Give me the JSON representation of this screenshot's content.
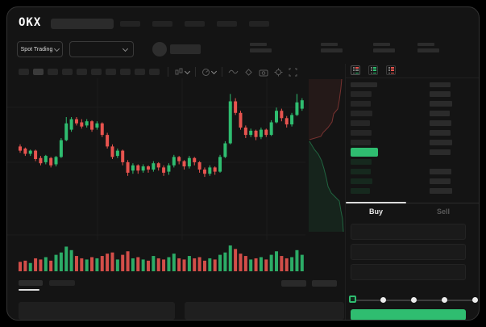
{
  "app": {
    "logo_text": "OKX"
  },
  "colors": {
    "background": "#000000",
    "window_bg": "#141414",
    "green": "#2fbd70",
    "red": "#e8544f",
    "text_primary": "#e8e8e8",
    "text_muted": "#595959"
  },
  "header": {
    "logo_text": "OKX",
    "search_placeholder": "",
    "nav_item_count": 5
  },
  "market_bar": {
    "market_selector_label": "Spot Trading",
    "stat_count": 4
  },
  "chart_toolbar": {
    "timeframe_slot_count": 10,
    "active_slot_index": 1,
    "icons": [
      "chart-type-icon",
      "chevron-down-icon",
      "indicators-icon",
      "chevron-down-icon",
      "line-tool-icon",
      "draw-tool-icon",
      "camera-icon",
      "settings-icon",
      "fullscreen-icon"
    ]
  },
  "chart_data": [
    {
      "type": "candlestick",
      "title": "",
      "xlabel": "",
      "ylabel": "",
      "axis_labels_visible": false,
      "grid": "faint",
      "value_scale": [
        0,
        100
      ],
      "candle_format": [
        "open",
        "close",
        "low",
        "high"
      ],
      "up_color": "#2fbd70",
      "down_color": "#e8544f",
      "candles": [
        [
          42,
          38,
          36,
          44
        ],
        [
          40,
          35,
          33,
          41
        ],
        [
          35,
          38,
          33,
          39
        ],
        [
          38,
          30,
          28,
          39
        ],
        [
          31,
          26,
          24,
          33
        ],
        [
          27,
          33,
          25,
          34
        ],
        [
          31,
          24,
          22,
          32
        ],
        [
          25,
          32,
          23,
          33
        ],
        [
          32,
          48,
          31,
          50
        ],
        [
          48,
          64,
          47,
          70
        ],
        [
          58,
          68,
          56,
          70
        ],
        [
          68,
          64,
          62,
          70
        ],
        [
          65,
          61,
          59,
          68
        ],
        [
          62,
          66,
          60,
          68
        ],
        [
          66,
          58,
          56,
          67
        ],
        [
          60,
          64,
          58,
          66
        ],
        [
          64,
          53,
          51,
          65
        ],
        [
          53,
          42,
          40,
          55
        ],
        [
          42,
          32,
          30,
          44
        ],
        [
          33,
          38,
          31,
          40
        ],
        [
          38,
          27,
          24,
          39
        ],
        [
          27,
          17,
          14,
          29
        ],
        [
          19,
          24,
          16,
          26
        ],
        [
          24,
          19,
          16,
          25
        ],
        [
          19,
          23,
          17,
          25
        ],
        [
          23,
          20,
          17,
          24
        ],
        [
          20,
          26,
          18,
          28
        ],
        [
          26,
          22,
          19,
          27
        ],
        [
          22,
          17,
          14,
          24
        ],
        [
          18,
          24,
          15,
          26
        ],
        [
          24,
          32,
          22,
          34
        ],
        [
          32,
          28,
          25,
          33
        ],
        [
          28,
          23,
          20,
          29
        ],
        [
          23,
          31,
          21,
          33
        ],
        [
          31,
          27,
          24,
          32
        ],
        [
          27,
          20,
          17,
          28
        ],
        [
          20,
          16,
          13,
          22
        ],
        [
          16,
          22,
          14,
          24
        ],
        [
          22,
          18,
          15,
          23
        ],
        [
          18,
          32,
          17,
          34
        ],
        [
          32,
          45,
          31,
          47
        ],
        [
          45,
          85,
          44,
          92
        ],
        [
          85,
          74,
          72,
          88
        ],
        [
          74,
          60,
          58,
          76
        ],
        [
          60,
          53,
          50,
          62
        ],
        [
          53,
          57,
          51,
          59
        ],
        [
          57,
          51,
          48,
          58
        ],
        [
          51,
          58,
          49,
          60
        ],
        [
          58,
          53,
          51,
          59
        ],
        [
          53,
          65,
          52,
          67
        ],
        [
          65,
          76,
          64,
          79
        ],
        [
          76,
          69,
          66,
          78
        ],
        [
          69,
          63,
          60,
          71
        ],
        [
          63,
          72,
          61,
          74
        ],
        [
          72,
          84,
          71,
          92
        ],
        [
          78,
          86,
          76,
          88
        ]
      ],
      "volume": [
        30,
        35,
        25,
        45,
        40,
        50,
        35,
        60,
        70,
        95,
        80,
        55,
        45,
        40,
        50,
        45,
        55,
        65,
        70,
        40,
        60,
        75,
        45,
        50,
        40,
        35,
        55,
        45,
        40,
        50,
        65,
        45,
        40,
        55,
        45,
        50,
        35,
        45,
        40,
        60,
        70,
        100,
        85,
        65,
        55,
        40,
        45,
        50,
        40,
        60,
        75,
        55,
        45,
        50,
        80,
        60
      ]
    },
    {
      "type": "area",
      "name": "orderbook-depth",
      "orientation": "vertical",
      "coords": "svg-local-px",
      "series": [
        {
          "name": "asks",
          "color": "#e8544f",
          "points": [
            [
              415,
              1
            ],
            [
              414,
              12
            ],
            [
              412,
              27
            ],
            [
              410,
              38
            ],
            [
              405,
              44
            ],
            [
              403,
              54
            ],
            [
              398,
              61
            ],
            [
              392,
              67
            ],
            [
              389,
              72
            ],
            [
              375,
              76
            ]
          ]
        },
        {
          "name": "bids",
          "color": "#2fbd70",
          "points": [
            [
              375,
              78
            ],
            [
              381,
              88
            ],
            [
              386,
              94
            ],
            [
              390,
              102
            ],
            [
              393,
              112
            ],
            [
              396,
              124
            ],
            [
              398,
              134
            ],
            [
              402,
              142
            ],
            [
              408,
              148
            ],
            [
              412,
              152
            ],
            [
              414,
              164
            ],
            [
              416,
              174
            ],
            [
              417,
              190
            ]
          ]
        }
      ]
    }
  ],
  "orderbook": {
    "view_icons": [
      "book-combined-icon",
      "book-bids-icon",
      "book-asks-icon"
    ],
    "ask_rows": [
      {
        "left_w": 26,
        "right_w": 26
      },
      {
        "left_w": 25,
        "right_w": 28
      },
      {
        "left_w": 27,
        "right_w": 25
      },
      {
        "left_w": 24,
        "right_w": 27
      },
      {
        "left_w": 26,
        "right_w": 26
      },
      {
        "left_w": 25,
        "right_w": 28
      }
    ],
    "last_price_highlight_color": "#2fbd70",
    "price_row_right_w": 26,
    "bid_rows": [
      {
        "left_w": 26,
        "right_w": 0
      },
      {
        "left_w": 25,
        "right_w": 27
      },
      {
        "left_w": 27,
        "right_w": 26
      },
      {
        "left_w": 24,
        "right_w": 28
      }
    ]
  },
  "trade_panel": {
    "tabs": [
      {
        "label": "Buy",
        "active": true
      },
      {
        "label": "Sell",
        "active": false
      }
    ],
    "input_row_count": 3,
    "slider": {
      "stops_percent": [
        0,
        25,
        50,
        75,
        100
      ],
      "current_percent": 0
    },
    "submit_button": {
      "label": "",
      "color": "#2fbd70"
    }
  },
  "bottom_bar": {
    "tab_count": 2,
    "active_tab_index": 0,
    "right_slot_count": 2,
    "panel_count": 2
  }
}
